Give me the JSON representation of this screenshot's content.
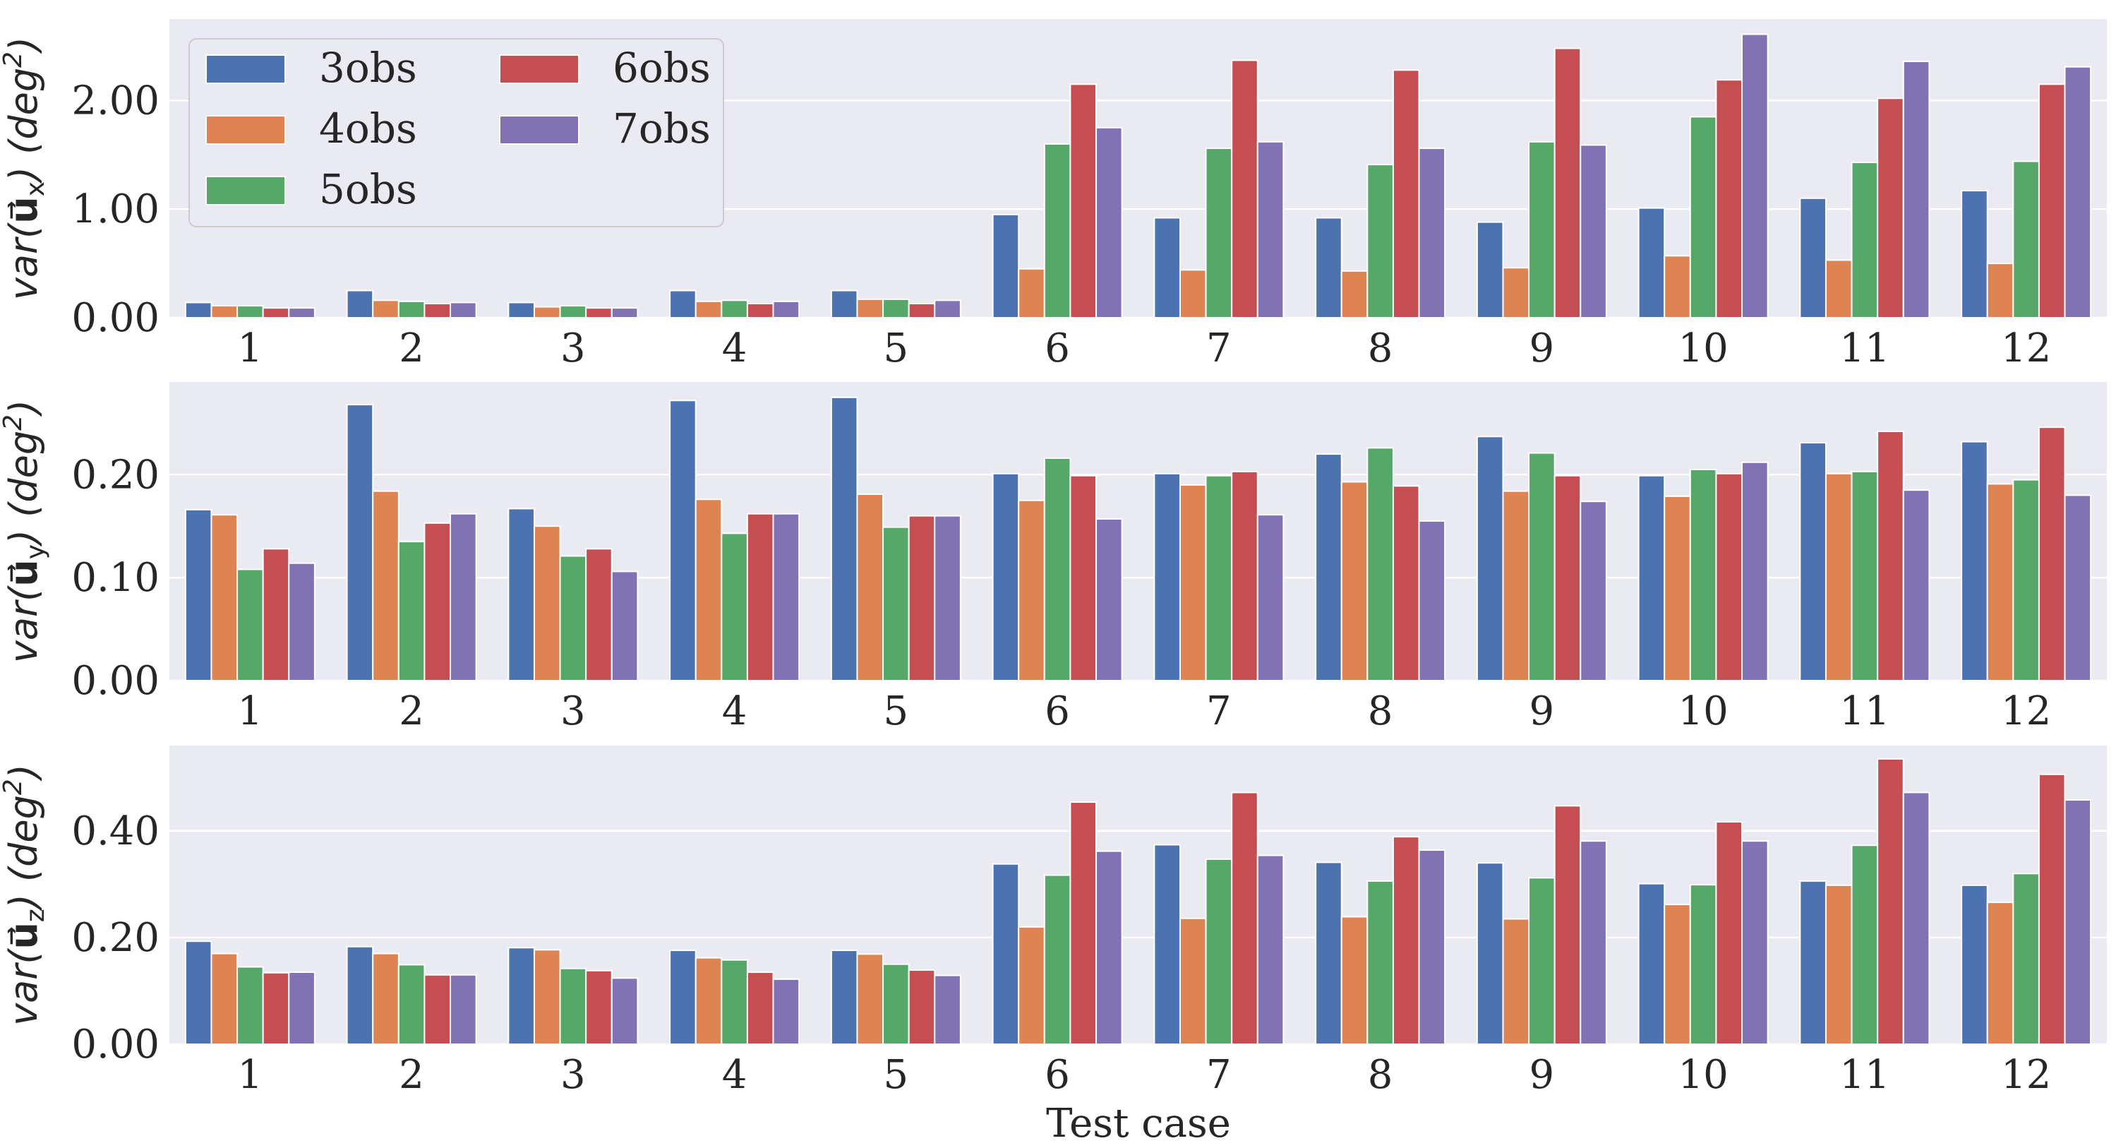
{
  "figure": {
    "xlabel": "Test case",
    "colors": [
      "#4c72b0",
      "#dd8452",
      "#55a868",
      "#c44e52",
      "#8172b3"
    ],
    "background": "#eaeaf2",
    "gridColor": "#ffffff"
  },
  "legend": {
    "entries": [
      "3obs",
      "4obs",
      "5obs",
      "6obs",
      "7obs"
    ],
    "placement": "top-left"
  },
  "chart_data": [
    {
      "type": "bar",
      "ylabel": {
        "prefix": "var(",
        "vec": "u",
        "sub": "x",
        "suffix": ") (deg",
        "sup": "2",
        "end": ")"
      },
      "ylim": [
        0,
        2.75
      ],
      "yticks": [
        0,
        1,
        2
      ],
      "ytick_labels": [
        "0.00",
        "1.00",
        "2.00"
      ],
      "categories": [
        "1",
        "2",
        "3",
        "4",
        "5",
        "6",
        "7",
        "8",
        "9",
        "10",
        "11",
        "12"
      ],
      "series": [
        {
          "name": "3obs",
          "values": [
            0.14,
            0.25,
            0.14,
            0.25,
            0.25,
            0.95,
            0.92,
            0.92,
            0.88,
            1.01,
            1.1,
            1.17
          ]
        },
        {
          "name": "4obs",
          "values": [
            0.11,
            0.16,
            0.1,
            0.15,
            0.17,
            0.45,
            0.44,
            0.43,
            0.46,
            0.57,
            0.53,
            0.5
          ]
        },
        {
          "name": "5obs",
          "values": [
            0.11,
            0.15,
            0.11,
            0.16,
            0.17,
            1.6,
            1.56,
            1.41,
            1.62,
            1.85,
            1.43,
            1.44
          ]
        },
        {
          "name": "6obs",
          "values": [
            0.09,
            0.13,
            0.09,
            0.13,
            0.13,
            2.15,
            2.37,
            2.28,
            2.48,
            2.19,
            2.02,
            2.15
          ]
        },
        {
          "name": "7obs",
          "values": [
            0.09,
            0.14,
            0.09,
            0.15,
            0.16,
            1.75,
            1.62,
            1.56,
            1.59,
            2.61,
            2.36,
            2.31
          ]
        }
      ]
    },
    {
      "type": "bar",
      "ylabel": {
        "prefix": "var(",
        "vec": "u",
        "sub": "y",
        "suffix": ") (deg",
        "sup": "2",
        "end": ")"
      },
      "ylim": [
        0,
        0.29
      ],
      "yticks": [
        0,
        0.1,
        0.2
      ],
      "ytick_labels": [
        "0.00",
        "0.10",
        "0.20"
      ],
      "categories": [
        "1",
        "2",
        "3",
        "4",
        "5",
        "6",
        "7",
        "8",
        "9",
        "10",
        "11",
        "12"
      ],
      "series": [
        {
          "name": "3obs",
          "values": [
            0.166,
            0.268,
            0.167,
            0.272,
            0.275,
            0.201,
            0.201,
            0.22,
            0.237,
            0.199,
            0.231,
            0.232
          ]
        },
        {
          "name": "4obs",
          "values": [
            0.161,
            0.184,
            0.15,
            0.176,
            0.181,
            0.175,
            0.19,
            0.193,
            0.184,
            0.179,
            0.201,
            0.191
          ]
        },
        {
          "name": "5obs",
          "values": [
            0.108,
            0.135,
            0.121,
            0.143,
            0.149,
            0.216,
            0.199,
            0.226,
            0.221,
            0.205,
            0.203,
            0.195
          ]
        },
        {
          "name": "6obs",
          "values": [
            0.128,
            0.153,
            0.128,
            0.162,
            0.16,
            0.199,
            0.203,
            0.189,
            0.199,
            0.201,
            0.242,
            0.246
          ]
        },
        {
          "name": "7obs",
          "values": [
            0.114,
            0.162,
            0.106,
            0.162,
            0.16,
            0.157,
            0.161,
            0.155,
            0.174,
            0.212,
            0.185,
            0.18
          ]
        }
      ]
    },
    {
      "type": "bar",
      "ylabel": {
        "prefix": "var(",
        "vec": "u",
        "sub": "z",
        "suffix": ") (deg",
        "sup": "2",
        "end": ")"
      },
      "ylim": [
        0,
        0.56
      ],
      "yticks": [
        0,
        0.2,
        0.4
      ],
      "ytick_labels": [
        "0.00",
        "0.20",
        "0.40"
      ],
      "categories": [
        "1",
        "2",
        "3",
        "4",
        "5",
        "6",
        "7",
        "8",
        "9",
        "10",
        "11",
        "12"
      ],
      "series": [
        {
          "name": "3obs",
          "values": [
            0.193,
            0.183,
            0.181,
            0.176,
            0.176,
            0.338,
            0.374,
            0.341,
            0.34,
            0.301,
            0.306,
            0.298
          ]
        },
        {
          "name": "4obs",
          "values": [
            0.17,
            0.17,
            0.177,
            0.162,
            0.169,
            0.22,
            0.236,
            0.239,
            0.235,
            0.262,
            0.298,
            0.266
          ]
        },
        {
          "name": "5obs",
          "values": [
            0.145,
            0.149,
            0.142,
            0.158,
            0.15,
            0.317,
            0.347,
            0.306,
            0.312,
            0.299,
            0.373,
            0.32
          ]
        },
        {
          "name": "6obs",
          "values": [
            0.134,
            0.13,
            0.138,
            0.135,
            0.139,
            0.454,
            0.472,
            0.389,
            0.447,
            0.417,
            0.535,
            0.506
          ]
        },
        {
          "name": "7obs",
          "values": [
            0.135,
            0.13,
            0.124,
            0.122,
            0.129,
            0.362,
            0.354,
            0.364,
            0.381,
            0.381,
            0.472,
            0.458
          ]
        }
      ]
    }
  ]
}
